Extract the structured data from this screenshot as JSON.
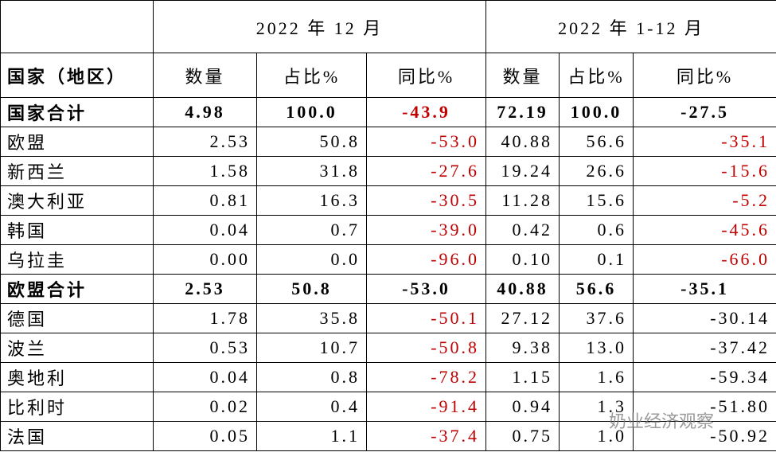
{
  "table": {
    "period_headers": [
      "2022 年 12 月",
      "2022 年 1-12 月"
    ],
    "column_headers": [
      "国家（地区）",
      "数量",
      "占比%",
      "同比%",
      "数量",
      "占比%",
      "同比%"
    ],
    "rows": [
      {
        "cells": [
          "国家合计",
          "4.98",
          "100.0",
          "-43.9",
          "72.19",
          "100.0",
          "-27.5"
        ],
        "bold": true,
        "yoy_colors": [
          "#c00000",
          "#000000"
        ]
      },
      {
        "cells": [
          "欧盟",
          "2.53",
          "50.8",
          "-53.0",
          "40.88",
          "56.6",
          "-35.1"
        ],
        "bold": false,
        "yoy_colors": [
          "#c00000",
          "#c00000"
        ]
      },
      {
        "cells": [
          "新西兰",
          "1.58",
          "31.8",
          "-27.6",
          "19.24",
          "26.6",
          "-15.6"
        ],
        "bold": false,
        "yoy_colors": [
          "#c00000",
          "#c00000"
        ]
      },
      {
        "cells": [
          "澳大利亚",
          "0.81",
          "16.3",
          "-30.5",
          "11.28",
          "15.6",
          "-5.2"
        ],
        "bold": false,
        "yoy_colors": [
          "#c00000",
          "#c00000"
        ]
      },
      {
        "cells": [
          "韩国",
          "0.04",
          "0.7",
          "-39.0",
          "0.42",
          "0.6",
          "-45.6"
        ],
        "bold": false,
        "yoy_colors": [
          "#c00000",
          "#c00000"
        ]
      },
      {
        "cells": [
          "乌拉圭",
          "0.00",
          "0.0",
          "-96.0",
          "0.10",
          "0.1",
          "-66.0"
        ],
        "bold": false,
        "yoy_colors": [
          "#c00000",
          "#c00000"
        ]
      },
      {
        "cells": [
          "欧盟合计",
          "2.53",
          "50.8",
          "-53.0",
          "40.88",
          "56.6",
          "-35.1"
        ],
        "bold": true,
        "yoy_colors": [
          "#000000",
          "#000000"
        ]
      },
      {
        "cells": [
          "德国",
          "1.78",
          "35.8",
          "-50.1",
          "27.12",
          "37.6",
          "-30.14"
        ],
        "bold": false,
        "yoy_colors": [
          "#c00000",
          "#000000"
        ]
      },
      {
        "cells": [
          "波兰",
          "0.53",
          "10.7",
          "-50.8",
          "9.38",
          "13.0",
          "-37.42"
        ],
        "bold": false,
        "yoy_colors": [
          "#c00000",
          "#000000"
        ]
      },
      {
        "cells": [
          "奥地利",
          "0.04",
          "0.8",
          "-78.2",
          "1.15",
          "1.6",
          "-59.34"
        ],
        "bold": false,
        "yoy_colors": [
          "#c00000",
          "#000000"
        ]
      },
      {
        "cells": [
          "比利时",
          "0.02",
          "0.4",
          "-91.4",
          "0.94",
          "1.3",
          "-51.80"
        ],
        "bold": false,
        "yoy_colors": [
          "#c00000",
          "#000000"
        ]
      },
      {
        "cells": [
          "法国",
          "0.05",
          "1.1",
          "-37.4",
          "0.75",
          "1.0",
          "-50.92"
        ],
        "bold": false,
        "yoy_colors": [
          "#c00000",
          "#000000"
        ]
      }
    ]
  },
  "watermark": "奶业经济观察"
}
